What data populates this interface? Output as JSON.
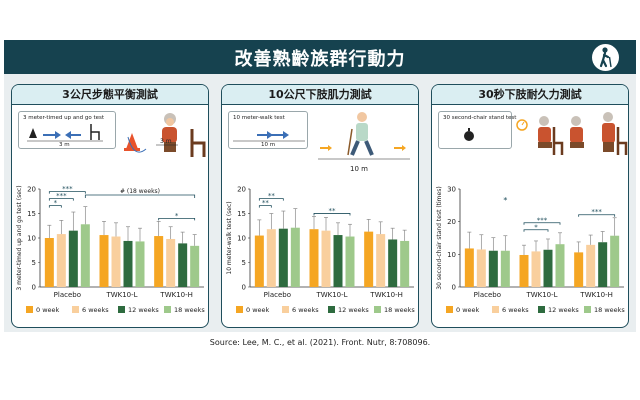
{
  "title": "改善熟齡族群行動力",
  "source": "Source: Lee, M. C., et al. (2021). Front. Nutr, 8:708096.",
  "colors": {
    "banner": "#16424f",
    "panel_head": "#daeef2",
    "sig": "#1f4e5c",
    "series": [
      "#f5a623",
      "#f9cf9d",
      "#2e6b3f",
      "#9ec98b"
    ]
  },
  "panels": [
    {
      "heading": "3公尺步態平衡測試",
      "test_label": "3 meter-timed up and go test",
      "distance": "3 m",
      "distance2": "3 m"
    },
    {
      "heading": "10公尺下肢肌力測試",
      "test_label": "10 meter-walk test",
      "distance": "10 m",
      "distance2": "10 m"
    },
    {
      "heading": "30秒下肢耐久力測試",
      "test_label": "30 second-chair stand test"
    }
  ],
  "chart_data": [
    {
      "type": "bar",
      "categories": [
        "Placebo",
        "TWK10-L",
        "TWK10-H"
      ],
      "ylabel": "3 meter-timed up and go test (sec)",
      "ylim": [
        0,
        20
      ],
      "yticks": [
        0,
        5,
        10,
        15,
        20
      ],
      "series": [
        {
          "name": "0 week",
          "values": [
            10.0,
            10.6,
            10.4
          ]
        },
        {
          "name": "6 weeks",
          "values": [
            10.8,
            10.3,
            9.8
          ]
        },
        {
          "name": "12 weeks",
          "values": [
            11.5,
            9.4,
            8.9
          ]
        },
        {
          "name": "18 weeks",
          "values": [
            12.8,
            9.3,
            8.4
          ]
        }
      ],
      "errors": [
        [
          2.6,
          2.8,
          3.0
        ],
        [
          2.8,
          2.8,
          2.5
        ],
        [
          3.8,
          2.9,
          2.3
        ],
        [
          3.6,
          2.7,
          2.3
        ]
      ],
      "significance": [
        {
          "cat": 0,
          "from": 0,
          "to": 1,
          "label": "*"
        },
        {
          "cat": 0,
          "from": 0,
          "to": 2,
          "label": "***"
        },
        {
          "cat": 0,
          "from": 0,
          "to": 3,
          "label": "***"
        },
        {
          "cat": 2,
          "from": 0,
          "to": 3,
          "label": "*"
        }
      ],
      "annotation": "# (18 weeks)"
    },
    {
      "type": "bar",
      "categories": [
        "Placebo",
        "TWK10-L",
        "TWK10-H"
      ],
      "ylabel": "10 meter-walk test (sec)",
      "ylim": [
        0,
        20
      ],
      "yticks": [
        0,
        5,
        10,
        15,
        20
      ],
      "series": [
        {
          "name": "0 week",
          "values": [
            10.5,
            11.8,
            11.3
          ]
        },
        {
          "name": "6 weeks",
          "values": [
            11.8,
            11.5,
            10.8
          ]
        },
        {
          "name": "12 weeks",
          "values": [
            11.9,
            10.6,
            9.7
          ]
        },
        {
          "name": "18 weeks",
          "values": [
            12.1,
            10.3,
            9.4
          ]
        }
      ],
      "errors": [
        [
          3.2,
          2.6,
          2.5
        ],
        [
          3.2,
          2.7,
          2.5
        ],
        [
          3.6,
          2.5,
          2.3
        ],
        [
          3.9,
          2.5,
          2.2
        ]
      ],
      "significance": [
        {
          "cat": 0,
          "from": 0,
          "to": 1,
          "label": "**"
        },
        {
          "cat": 0,
          "from": 0,
          "to": 2,
          "label": "**"
        },
        {
          "cat": 1,
          "from": 0,
          "to": 3,
          "label": "**"
        }
      ]
    },
    {
      "type": "bar",
      "categories": [
        "Placebo",
        "TWK10-L",
        "TWK10-H"
      ],
      "ylabel": "30 second-chair stand test (times)",
      "ylim": [
        0,
        30
      ],
      "yticks": [
        0,
        10,
        20,
        30
      ],
      "series": [
        {
          "name": "0 week",
          "values": [
            11.8,
            9.8,
            10.6
          ]
        },
        {
          "name": "6 weeks",
          "values": [
            11.5,
            10.9,
            12.9
          ]
        },
        {
          "name": "12 weeks",
          "values": [
            11.1,
            11.4,
            13.7
          ]
        },
        {
          "name": "18 weeks",
          "values": [
            11.1,
            13.1,
            15.7
          ]
        }
      ],
      "errors": [
        [
          5.0,
          3.0,
          3.2
        ],
        [
          4.5,
          3.2,
          3.0
        ],
        [
          4.0,
          3.3,
          3.3
        ],
        [
          4.6,
          3.5,
          5.5
        ]
      ],
      "significance": [
        {
          "cat": 1,
          "from": 0,
          "to": 2,
          "label": "*"
        },
        {
          "cat": 1,
          "from": 0,
          "to": 3,
          "label": "***"
        },
        {
          "cat": 2,
          "from": 0,
          "to": 3,
          "label": "***"
        }
      ],
      "annotation": "*"
    }
  ]
}
